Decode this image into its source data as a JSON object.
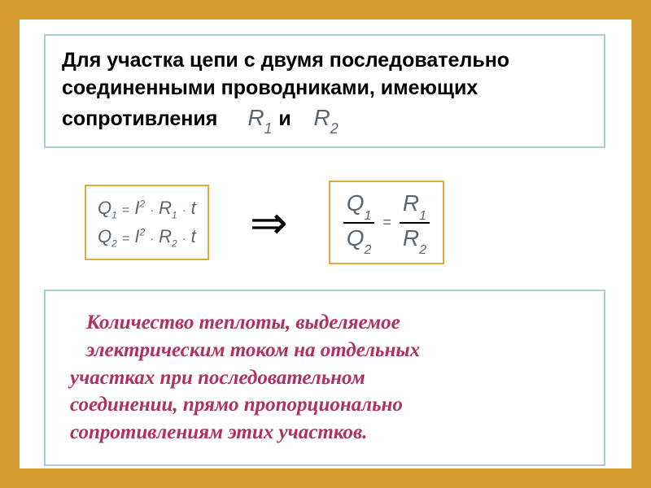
{
  "colors": {
    "frame_border": "#d29a2f",
    "box_border": "#a8cdd7",
    "heading_text": "#000000",
    "var_color": "#5b6670",
    "bottom_text": "#b03060",
    "ratio_border": "#e5a83a"
  },
  "top": {
    "line1": "Для участка цепи с двумя последовательно",
    "line2": "соединенными проводниками, имеющих",
    "line3_prefix": "сопротивления",
    "var1_letter": "R",
    "var1_sub": "1",
    "conj": "и",
    "var2_letter": "R",
    "var2_sub": "2"
  },
  "equations": {
    "q1_lhs": "Q",
    "q1_sub": "1",
    "i_letter": "I",
    "i_exp": "2",
    "r_letter": "R",
    "r1_sub": "1",
    "r2_sub": "2",
    "t_letter": "t",
    "q2_lhs": "Q",
    "q2_sub": "2",
    "dot": "·",
    "eq": "="
  },
  "ratio": {
    "Q": "Q",
    "R": "R",
    "s1": "1",
    "s2": "2",
    "eq": "="
  },
  "bottom": {
    "l1": "Количество теплоты, выделяемое",
    "l2": "электрическим током на отдельных",
    "l3": "участках при последовательном",
    "l4": "соединении, прямо пропорционально",
    "l5": "сопротивлениям этих участков."
  }
}
